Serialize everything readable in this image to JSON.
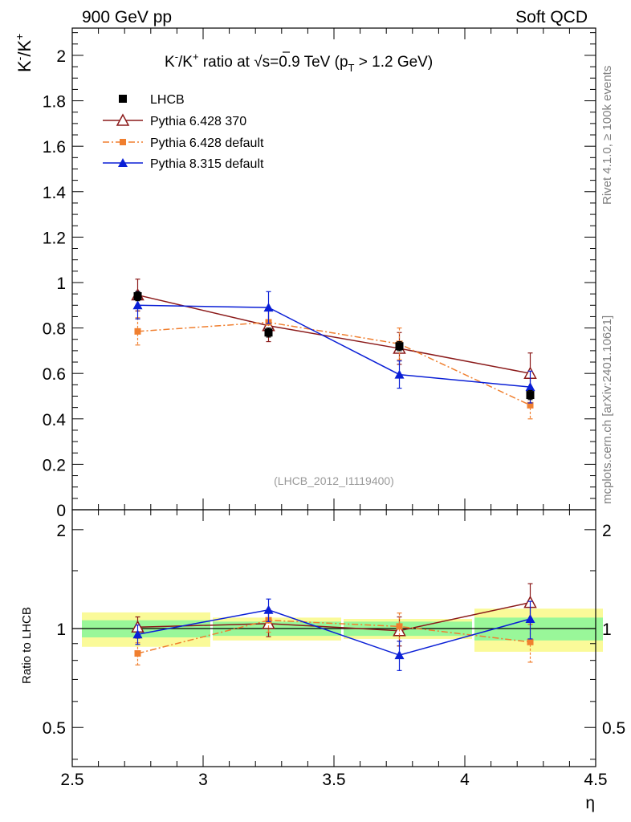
{
  "header": {
    "left_label": "900 GeV pp",
    "right_label": "Soft QCD"
  },
  "side_labels": {
    "rivet": "Rivet 4.1.0, ≥ 100k events",
    "mcplots": "mcplots.cern.ch [arXiv:2401.10621]"
  },
  "colors": {
    "lhcb": "#000000",
    "py6_370": "#8b1a1a",
    "py6_def": "#f07f2f",
    "py8": "#0a1fd6",
    "band_green": "#99f799",
    "band_yellow": "#fafa99"
  },
  "chart_data": [
    {
      "type": "scatter",
      "panel": "main",
      "title": "K⁻/K⁺ ratio at √s=0.9 TeV (p_T > 1.2 GeV)",
      "title_parts": {
        "a": "K",
        "b": "/K",
        "c": " ratio at ",
        "d": "s=0.9 TeV (p",
        "e": "T",
        "f": " > 1.2 GeV)",
        "minus": "-",
        "plus": "+"
      },
      "ylabel": "K⁻/K⁺",
      "xlabel": "η",
      "watermark": "(LHCB_2012_I1119400)",
      "xlim": [
        2.5,
        4.5
      ],
      "ylim": [
        0,
        2.12
      ],
      "y_ticks": [
        "0",
        "0.2",
        "0.4",
        "0.6",
        "0.8",
        "1",
        "1.2",
        "1.4",
        "1.6",
        "1.8",
        "2"
      ],
      "x": [
        2.75,
        3.25,
        3.75,
        4.25
      ],
      "series": [
        {
          "name": "LHCB",
          "values": [
            0.94,
            0.78,
            0.72,
            0.505
          ],
          "errors": [
            0.02,
            0.02,
            0.02,
            0.02
          ]
        },
        {
          "name": "Pythia 6.428 370",
          "values": [
            0.945,
            0.81,
            0.71,
            0.6
          ],
          "errors": [
            0.07,
            0.07,
            0.07,
            0.09
          ]
        },
        {
          "name": "Pythia 6.428 default",
          "values": [
            0.785,
            0.825,
            0.73,
            0.46
          ],
          "errors": [
            0.06,
            0.065,
            0.07,
            0.06
          ]
        },
        {
          "name": "Pythia 8.315 default",
          "values": [
            0.9,
            0.89,
            0.595,
            0.54
          ],
          "errors": [
            0.06,
            0.07,
            0.06,
            0.07
          ]
        }
      ]
    },
    {
      "type": "line",
      "panel": "ratio",
      "ylabel": "Ratio to LHCB",
      "xlabel": "η",
      "xlim": [
        2.5,
        4.5
      ],
      "ylim_log": [
        0.38,
        2.3
      ],
      "y_ticks": [
        "0.5",
        "1",
        "2"
      ],
      "x_ticks": [
        "2.5",
        "3",
        "3.5",
        "4",
        "4.5"
      ],
      "bins": [
        [
          2.5,
          3.0
        ],
        [
          3.0,
          3.5
        ],
        [
          3.5,
          4.0
        ],
        [
          4.0,
          4.5
        ]
      ],
      "band_green": [
        [
          0.94,
          1.06
        ],
        [
          0.95,
          1.05
        ],
        [
          0.95,
          1.05
        ],
        [
          0.92,
          1.08
        ]
      ],
      "band_yellow": [
        [
          0.88,
          1.12
        ],
        [
          0.92,
          1.08
        ],
        [
          0.93,
          1.07
        ],
        [
          0.85,
          1.15
        ]
      ],
      "x": [
        2.75,
        3.25,
        3.75,
        4.25
      ],
      "series": [
        {
          "name": "Pythia 6.428 370",
          "values": [
            1.01,
            1.035,
            0.985,
            1.2
          ],
          "errors": [
            0.075,
            0.09,
            0.1,
            0.17
          ]
        },
        {
          "name": "Pythia 6.428 default",
          "values": [
            0.84,
            1.06,
            1.015,
            0.91
          ],
          "errors": [
            0.065,
            0.085,
            0.1,
            0.12
          ]
        },
        {
          "name": "Pythia 8.315 default",
          "values": [
            0.96,
            1.14,
            0.83,
            1.07
          ],
          "errors": [
            0.065,
            0.09,
            0.085,
            0.14
          ]
        }
      ]
    }
  ]
}
